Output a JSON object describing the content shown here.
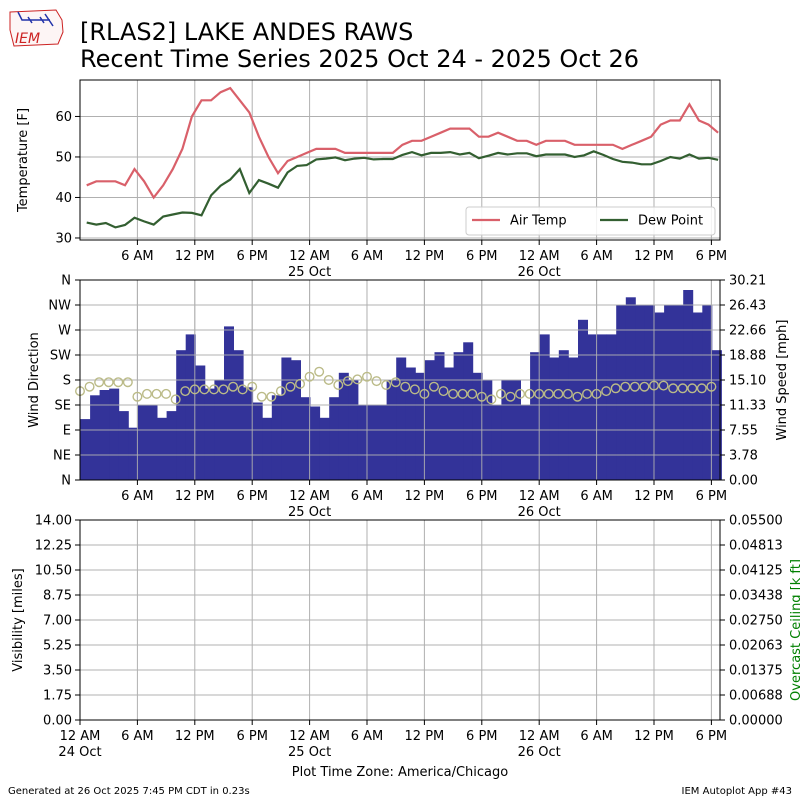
{
  "title_line1": "[RLAS2] LAKE ANDES RAWS",
  "title_line2": "Recent Time Series 2025 Oct 24 - 2025 Oct 26",
  "footer_left": "Generated at 26 Oct 2025 7:45 PM CDT in 0.23s",
  "footer_right": "IEM Autoplot App #43",
  "logo_text": "IEM",
  "xaxis_label": "Plot Time Zone: America/Chicago",
  "colors": {
    "temp": "#d9606a",
    "dewpoint": "#335f31",
    "wind_bar": "#333399",
    "wind_dir_marker": "#bbbb88",
    "ceiling_label": "#008000",
    "grid": "#b0b0b0"
  },
  "chart_data": [
    {
      "type": "line",
      "ylabel": "Temperature [F]",
      "ylim": [
        29.5,
        69
      ],
      "yticks": [
        30,
        40,
        50,
        60
      ],
      "xlim": [
        0,
        66.9
      ],
      "grid": true,
      "legend_placement": "lower-right",
      "x_ticks": [
        {
          "x": 6,
          "label": "6 AM",
          "sub": ""
        },
        {
          "x": 12,
          "label": "12 PM",
          "sub": ""
        },
        {
          "x": 18,
          "label": "6 PM",
          "sub": ""
        },
        {
          "x": 24,
          "label": "12 AM",
          "sub": "25 Oct"
        },
        {
          "x": 30,
          "label": "6 AM",
          "sub": ""
        },
        {
          "x": 36,
          "label": "12 PM",
          "sub": ""
        },
        {
          "x": 42,
          "label": "6 PM",
          "sub": ""
        },
        {
          "x": 48,
          "label": "12 AM",
          "sub": "26 Oct"
        },
        {
          "x": 54,
          "label": "6 AM",
          "sub": ""
        },
        {
          "x": 60,
          "label": "12 PM",
          "sub": ""
        },
        {
          "x": 66,
          "label": "6 PM",
          "sub": ""
        }
      ],
      "series": [
        {
          "name": "Air Temp",
          "x": [
            0.7,
            1.7,
            2.7,
            3.7,
            4.7,
            5.7,
            6.7,
            7.7,
            8.7,
            9.7,
            10.7,
            11.7,
            12.7,
            13.7,
            14.7,
            15.7,
            16.7,
            17.7,
            18.7,
            19.7,
            20.7,
            21.7,
            22.7,
            23.7,
            24.7,
            25.7,
            26.7,
            27.7,
            28.7,
            29.7,
            30.7,
            31.7,
            32.7,
            33.7,
            34.7,
            35.7,
            36.7,
            37.7,
            38.7,
            39.7,
            40.7,
            41.7,
            42.7,
            43.7,
            44.7,
            45.7,
            46.7,
            47.7,
            48.7,
            49.7,
            50.7,
            51.7,
            52.7,
            53.7,
            54.7,
            55.7,
            56.7,
            57.7,
            58.7,
            59.7,
            60.7,
            61.7,
            62.7,
            63.7,
            64.7,
            65.7,
            66.7
          ],
          "values": [
            43,
            44,
            44,
            44,
            43,
            47,
            44,
            40,
            43,
            47,
            52,
            60,
            64,
            64,
            66,
            67,
            64,
            61,
            55,
            50,
            46,
            49,
            50,
            51,
            52,
            52,
            52,
            51,
            51,
            51,
            51,
            51,
            51,
            53,
            54,
            54,
            55,
            56,
            57,
            57,
            57,
            55,
            55,
            56,
            55,
            54,
            54,
            53,
            54,
            54,
            54,
            53,
            53,
            53,
            53,
            53,
            52,
            53,
            54,
            55,
            58,
            59,
            59,
            63,
            59,
            58,
            56
          ]
        },
        {
          "name": "Dew Point",
          "x": [
            0.7,
            1.7,
            2.7,
            3.7,
            4.7,
            5.7,
            6.7,
            7.7,
            8.7,
            9.7,
            10.7,
            11.7,
            12.7,
            13.7,
            14.7,
            15.7,
            16.7,
            17.7,
            18.7,
            19.7,
            20.7,
            21.7,
            22.7,
            23.7,
            24.7,
            25.7,
            26.7,
            27.7,
            28.7,
            29.7,
            30.7,
            31.7,
            32.7,
            33.7,
            34.7,
            35.7,
            36.7,
            37.7,
            38.7,
            39.7,
            40.7,
            41.7,
            42.7,
            43.7,
            44.7,
            45.7,
            46.7,
            47.7,
            48.7,
            49.7,
            50.7,
            51.7,
            52.7,
            53.7,
            54.7,
            55.7,
            56.7,
            57.7,
            58.7,
            59.7,
            60.7,
            61.7,
            62.7,
            63.7,
            64.7,
            65.7,
            66.7
          ],
          "values": [
            33.8,
            33.3,
            33.7,
            32.6,
            33.2,
            35,
            34.1,
            33.3,
            35.3,
            35.8,
            36.3,
            36.2,
            35.6,
            40.5,
            42.9,
            44.4,
            47,
            41.1,
            44.3,
            43.4,
            42.4,
            46.2,
            47.8,
            48,
            49.4,
            49.6,
            49.9,
            49.2,
            49.6,
            49.8,
            49.4,
            49.5,
            49.5,
            50.5,
            51.2,
            50.4,
            51,
            51,
            51.2,
            50.6,
            51,
            49.7,
            50.3,
            51,
            50.6,
            50.9,
            50.9,
            50.2,
            50.6,
            50.6,
            50.6,
            50,
            50.4,
            51.4,
            50.5,
            49.5,
            48.8,
            48.6,
            48.2,
            48.2,
            49,
            50,
            49.6,
            50.6,
            49.6,
            49.8,
            49.3
          ]
        }
      ]
    },
    {
      "type": "bar",
      "ylabel": "Wind Direction",
      "y2label": "Wind Speed [mph]",
      "xlim": [
        0,
        66.9
      ],
      "grid": true,
      "direction_ticks": [
        "N",
        "NE",
        "E",
        "SE",
        "S",
        "SW",
        "W",
        "NW",
        "N"
      ],
      "speed_ticks": [
        "0.00",
        "3.78",
        "7.55",
        "11.33",
        "15.10",
        "18.88",
        "22.66",
        "26.43",
        "30.21"
      ],
      "speed_ylim": [
        0,
        30.21
      ],
      "x_ticks_ref": "same as temperature panel",
      "series": [
        {
          "name": "Wind Speed",
          "x": [
            0,
            1,
            2,
            3,
            4,
            5,
            6,
            7,
            8,
            9,
            10,
            11,
            12,
            13,
            14,
            15,
            16,
            17,
            18,
            19,
            20,
            21,
            22,
            23,
            24,
            25,
            26,
            27,
            28,
            29,
            30,
            31,
            32,
            33,
            34,
            35,
            36,
            37,
            38,
            39,
            40,
            41,
            42,
            43,
            44,
            45,
            46,
            47,
            48,
            49,
            50,
            51,
            52,
            53,
            54,
            55,
            56,
            57,
            58,
            59,
            60,
            61,
            62,
            63,
            64,
            65,
            66
          ],
          "values": [
            9.2,
            12.8,
            13.6,
            13.8,
            10.4,
            7.9,
            11.3,
            11.3,
            9.4,
            10.4,
            19.6,
            22,
            17.3,
            13.8,
            15.1,
            23.2,
            19.6,
            14,
            11.7,
            9.4,
            12.8,
            18.5,
            18.1,
            12.5,
            11.1,
            9.4,
            12.5,
            16.2,
            15.1,
            11.3,
            11.3,
            11.3,
            15.1,
            18.5,
            17,
            16.2,
            18.1,
            19.3,
            17,
            19.3,
            20.8,
            16.2,
            15.1,
            11.3,
            15.1,
            15.1,
            11.3,
            19.3,
            22,
            18.5,
            19.6,
            18.5,
            24.2,
            22,
            22,
            22,
            26.4,
            27.6,
            26.4,
            26.4,
            25.3,
            26.4,
            26.4,
            28.7,
            25.3,
            26.4,
            19.6
          ]
        },
        {
          "name": "Wind Direction",
          "x": [
            0,
            1,
            2,
            3,
            4,
            5,
            6,
            7,
            8,
            9,
            10,
            11,
            12,
            13,
            14,
            15,
            16,
            17,
            18,
            19,
            20,
            21,
            22,
            23,
            24,
            25,
            26,
            27,
            28,
            29,
            30,
            31,
            32,
            33,
            34,
            35,
            36,
            37,
            38,
            39,
            40,
            41,
            42,
            43,
            44,
            45,
            46,
            47,
            48,
            49,
            50,
            51,
            52,
            53,
            54,
            55,
            56,
            57,
            58,
            59,
            60,
            61,
            62,
            63,
            64,
            65,
            66
          ],
          "values": [
            160,
            168,
            176,
            176,
            176,
            176,
            150,
            155,
            155,
            155,
            145,
            160,
            163,
            163,
            163,
            163,
            168,
            163,
            168,
            150,
            150,
            160,
            168,
            173,
            186,
            195,
            180,
            171,
            178,
            181,
            186,
            178,
            171,
            176,
            168,
            163,
            155,
            168,
            160,
            155,
            155,
            155,
            150,
            145,
            155,
            150,
            155,
            155,
            155,
            155,
            155,
            155,
            150,
            155,
            155,
            160,
            165,
            168,
            168,
            168,
            170,
            170,
            165,
            165,
            165,
            165,
            168
          ]
        }
      ]
    },
    {
      "type": "line",
      "ylabel": "Visibility [miles]",
      "y2label": "Overcast Ceiling [k ft]",
      "ylim": [
        0,
        14
      ],
      "y2lim": [
        0,
        0.055
      ],
      "yticks": [
        "0.00",
        "1.75",
        "3.50",
        "5.25",
        "7.00",
        "8.75",
        "10.50",
        "12.25",
        "14.00"
      ],
      "y2ticks": [
        "0.00000",
        "0.00688",
        "0.01375",
        "0.02063",
        "0.02750",
        "0.03438",
        "0.04125",
        "0.04813",
        "0.05500"
      ],
      "grid": true,
      "xlim": [
        0,
        66.9
      ],
      "x_ticks": [
        {
          "x": 0,
          "label": "12 AM",
          "sub": "24 Oct"
        },
        {
          "x": 6,
          "label": "6 AM",
          "sub": ""
        },
        {
          "x": 12,
          "label": "12 PM",
          "sub": ""
        },
        {
          "x": 18,
          "label": "6 PM",
          "sub": ""
        },
        {
          "x": 24,
          "label": "12 AM",
          "sub": "25 Oct"
        },
        {
          "x": 30,
          "label": "6 AM",
          "sub": ""
        },
        {
          "x": 36,
          "label": "12 PM",
          "sub": ""
        },
        {
          "x": 42,
          "label": "6 PM",
          "sub": ""
        },
        {
          "x": 48,
          "label": "12 AM",
          "sub": "26 Oct"
        },
        {
          "x": 54,
          "label": "6 AM",
          "sub": ""
        },
        {
          "x": 60,
          "label": "12 PM",
          "sub": ""
        },
        {
          "x": 66,
          "label": "6 PM",
          "sub": ""
        }
      ],
      "series": []
    }
  ]
}
